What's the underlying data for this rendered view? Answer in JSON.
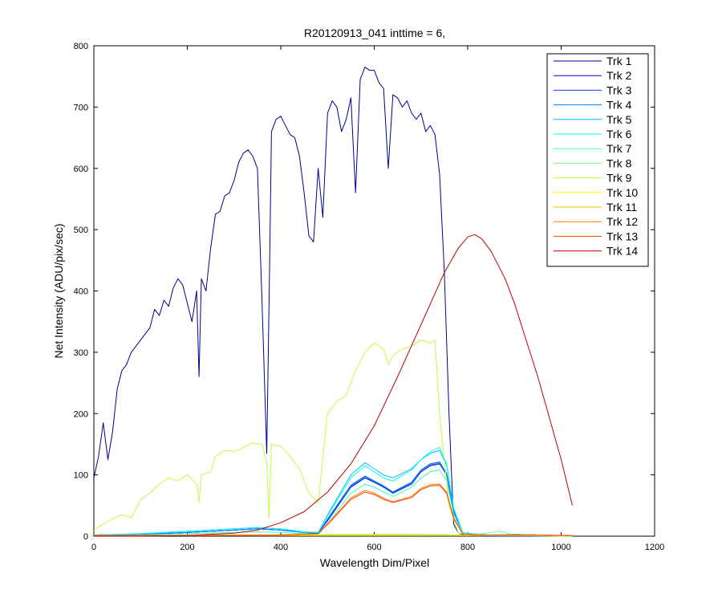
{
  "chart_data": {
    "type": "line",
    "title": "R20120913_041 inttime = 6,",
    "xlabel": "Wavelength Dim/Pixel",
    "ylabel": "Net Intensity (ADU/pix/sec)",
    "xlim": [
      0,
      1200
    ],
    "ylim": [
      0,
      800
    ],
    "xticks": [
      0,
      200,
      400,
      600,
      800,
      1000,
      1200
    ],
    "yticks": [
      0,
      100,
      200,
      300,
      400,
      500,
      600,
      700,
      800
    ],
    "legend_position": "top-right",
    "grid": false,
    "series": [
      {
        "name": "Trk 1",
        "color": "#00008f",
        "x": [
          0,
          10,
          20,
          30,
          40,
          50,
          60,
          70,
          80,
          100,
          120,
          130,
          140,
          150,
          160,
          170,
          180,
          190,
          200,
          210,
          220,
          225,
          230,
          240,
          250,
          260,
          270,
          280,
          290,
          300,
          310,
          320,
          330,
          340,
          350,
          360,
          370,
          375,
          380,
          385,
          390,
          400,
          410,
          420,
          430,
          440,
          450,
          460,
          470,
          480,
          490,
          500,
          510,
          520,
          530,
          540,
          550,
          560,
          570,
          580,
          590,
          600,
          610,
          620,
          630,
          640,
          650,
          660,
          670,
          680,
          690,
          700,
          710,
          720,
          730,
          740,
          750,
          760,
          770,
          780,
          790,
          800,
          850,
          900,
          950,
          1000,
          1024
        ],
        "y": [
          95,
          130,
          185,
          125,
          170,
          240,
          270,
          280,
          300,
          320,
          340,
          370,
          360,
          385,
          375,
          405,
          420,
          410,
          380,
          350,
          400,
          260,
          420,
          400,
          470,
          525,
          530,
          555,
          560,
          580,
          610,
          625,
          630,
          620,
          600,
          380,
          135,
          380,
          660,
          670,
          680,
          685,
          670,
          655,
          650,
          620,
          560,
          490,
          480,
          600,
          520,
          690,
          710,
          700,
          660,
          680,
          715,
          560,
          745,
          765,
          760,
          760,
          740,
          730,
          600,
          720,
          715,
          700,
          710,
          690,
          680,
          690,
          660,
          670,
          655,
          590,
          430,
          200,
          20,
          5,
          2,
          1,
          0,
          0,
          0,
          0,
          0
        ]
      },
      {
        "name": "Trk 2",
        "color": "#0000bf",
        "x": [
          0,
          100,
          200,
          300,
          350,
          400,
          450,
          480,
          500,
          550,
          580,
          600,
          620,
          640,
          680,
          700,
          720,
          740,
          755,
          770,
          790,
          850,
          900,
          1000,
          1024
        ],
        "y": [
          2,
          3,
          6,
          10,
          12,
          10,
          6,
          5,
          25,
          80,
          95,
          88,
          80,
          70,
          85,
          105,
          115,
          118,
          100,
          40,
          5,
          2,
          3,
          1,
          1
        ]
      },
      {
        "name": "Trk 3",
        "color": "#0040ff",
        "x": [
          0,
          100,
          200,
          300,
          350,
          400,
          450,
          480,
          500,
          550,
          580,
          600,
          620,
          640,
          680,
          700,
          720,
          740,
          755,
          770,
          790,
          850,
          900,
          1000,
          1024
        ],
        "y": [
          2,
          3,
          6,
          10,
          12,
          10,
          6,
          5,
          28,
          83,
          98,
          90,
          82,
          72,
          88,
          108,
          118,
          121,
          102,
          42,
          5,
          2,
          3,
          1,
          1
        ]
      },
      {
        "name": "Trk 4",
        "color": "#0080ff",
        "x": [
          0,
          100,
          200,
          300,
          350,
          400,
          450,
          480,
          500,
          550,
          580,
          600,
          620,
          640,
          680,
          700,
          720,
          740,
          755,
          770,
          790,
          850,
          900,
          1000,
          1024
        ],
        "y": [
          2,
          3,
          6,
          10,
          12,
          10,
          6,
          5,
          27,
          81,
          96,
          89,
          81,
          71,
          86,
          106,
          116,
          119,
          101,
          41,
          5,
          2,
          3,
          1,
          1
        ]
      },
      {
        "name": "Trk 5",
        "color": "#00bfff",
        "x": [
          0,
          100,
          200,
          300,
          350,
          400,
          450,
          480,
          500,
          550,
          580,
          600,
          620,
          640,
          680,
          700,
          720,
          740,
          755,
          770,
          790,
          850,
          900,
          1000,
          1024
        ],
        "y": [
          2,
          4,
          8,
          12,
          14,
          12,
          7,
          6,
          35,
          100,
          120,
          110,
          100,
          95,
          110,
          125,
          135,
          140,
          115,
          45,
          5,
          2,
          3,
          1,
          1
        ]
      },
      {
        "name": "Trk 6",
        "color": "#00ffff",
        "x": [
          0,
          100,
          200,
          300,
          350,
          400,
          450,
          480,
          500,
          550,
          580,
          600,
          620,
          640,
          680,
          700,
          720,
          740,
          755,
          770,
          790,
          850,
          900,
          1000,
          1024
        ],
        "y": [
          2,
          4,
          8,
          12,
          14,
          12,
          7,
          6,
          33,
          95,
          115,
          105,
          95,
          90,
          108,
          125,
          138,
          145,
          118,
          46,
          5,
          2,
          3,
          1,
          1
        ]
      },
      {
        "name": "Trk 7",
        "color": "#40ffbf",
        "x": [
          0,
          100,
          200,
          300,
          350,
          400,
          450,
          480,
          500,
          550,
          580,
          600,
          620,
          640,
          680,
          700,
          720,
          740,
          755,
          770,
          790,
          850,
          900,
          1000,
          1024
        ],
        "y": [
          1,
          2,
          4,
          6,
          7,
          6,
          4,
          3,
          20,
          70,
          85,
          80,
          72,
          65,
          80,
          95,
          105,
          108,
          90,
          35,
          4,
          2,
          3,
          1,
          1
        ]
      },
      {
        "name": "Trk 8",
        "color": "#80ff80",
        "x": [
          0,
          100,
          200,
          300,
          400,
          500,
          600,
          700,
          740,
          760,
          780,
          800,
          870,
          900,
          1000,
          1024
        ],
        "y": [
          1,
          1,
          2,
          2,
          2,
          3,
          3,
          3,
          3,
          2,
          2,
          1,
          8,
          2,
          1,
          1
        ]
      },
      {
        "name": "Trk 9",
        "color": "#bfff40",
        "x": [
          0,
          20,
          40,
          60,
          80,
          100,
          120,
          140,
          160,
          180,
          200,
          220,
          225,
          230,
          250,
          260,
          280,
          300,
          320,
          340,
          360,
          370,
          375,
          380,
          390,
          400,
          420,
          440,
          460,
          480,
          500,
          520,
          540,
          560,
          580,
          600,
          620,
          630,
          640,
          660,
          680,
          700,
          720,
          730,
          740,
          760,
          780,
          800,
          850,
          900,
          1000,
          1024
        ],
        "y": [
          10,
          20,
          28,
          35,
          30,
          60,
          70,
          85,
          95,
          90,
          100,
          85,
          55,
          100,
          105,
          130,
          140,
          138,
          145,
          152,
          150,
          120,
          30,
          150,
          148,
          147,
          130,
          110,
          70,
          55,
          200,
          220,
          230,
          270,
          300,
          315,
          305,
          280,
          295,
          305,
          310,
          320,
          315,
          320,
          200,
          50,
          5,
          2,
          1,
          1,
          0,
          0
        ]
      },
      {
        "name": "Trk 10",
        "color": "#ffff00",
        "x": [
          0,
          200,
          400,
          600,
          800,
          1000,
          1024
        ],
        "y": [
          1,
          1,
          2,
          2,
          1,
          1,
          1
        ]
      },
      {
        "name": "Trk 11",
        "color": "#ffbf00",
        "x": [
          0,
          200,
          400,
          600,
          800,
          1000,
          1024
        ],
        "y": [
          1,
          1,
          1,
          1,
          1,
          1,
          1
        ]
      },
      {
        "name": "Trk 12",
        "color": "#ff8000",
        "x": [
          0,
          200,
          400,
          480,
          500,
          550,
          580,
          600,
          620,
          640,
          680,
          700,
          720,
          740,
          755,
          770,
          790,
          850,
          900,
          1000,
          1024
        ],
        "y": [
          1,
          1,
          2,
          4,
          20,
          62,
          75,
          70,
          62,
          56,
          65,
          78,
          84,
          85,
          72,
          30,
          3,
          1,
          2,
          1,
          1
        ]
      },
      {
        "name": "Trk 13",
        "color": "#ff4000",
        "x": [
          0,
          200,
          400,
          480,
          500,
          550,
          580,
          600,
          620,
          640,
          680,
          700,
          720,
          740,
          755,
          770,
          790,
          850,
          900,
          1000,
          1024
        ],
        "y": [
          1,
          1,
          2,
          4,
          19,
          60,
          72,
          68,
          60,
          55,
          63,
          76,
          82,
          83,
          70,
          29,
          3,
          1,
          2,
          1,
          1
        ]
      },
      {
        "name": "Trk 14",
        "color": "#bf0000",
        "x": [
          0,
          100,
          200,
          300,
          350,
          400,
          450,
          500,
          550,
          600,
          650,
          700,
          750,
          780,
          800,
          815,
          830,
          850,
          880,
          900,
          950,
          1000,
          1024
        ],
        "y": [
          0,
          0,
          1,
          5,
          10,
          22,
          40,
          72,
          118,
          180,
          260,
          345,
          430,
          470,
          488,
          492,
          485,
          465,
          420,
          380,
          260,
          125,
          50
        ]
      }
    ]
  }
}
